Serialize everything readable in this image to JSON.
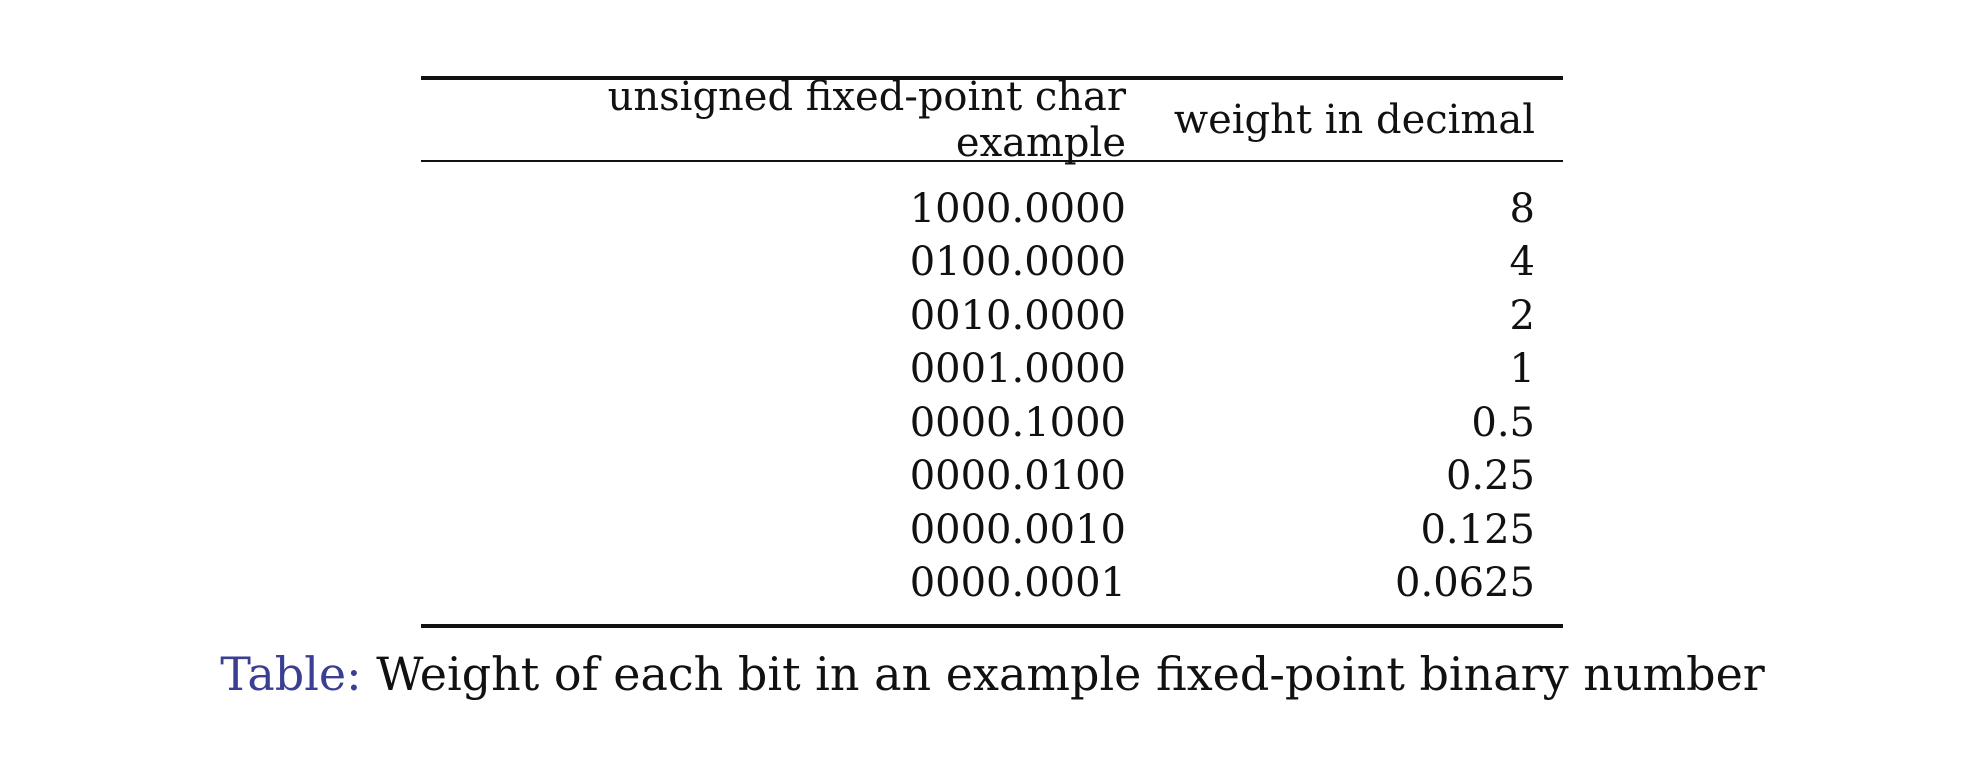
{
  "table": {
    "headers": [
      "unsigned fixed-point char example",
      "weight in decimal"
    ],
    "rows": [
      [
        "1000.0000",
        "8"
      ],
      [
        "0100.0000",
        "4"
      ],
      [
        "0010.0000",
        "2"
      ],
      [
        "0001.0000",
        "1"
      ],
      [
        "0000.1000",
        "0.5"
      ],
      [
        "0000.0100",
        "0.25"
      ],
      [
        "0000.0010",
        "0.125"
      ],
      [
        "0000.0001",
        "0.0625"
      ]
    ]
  },
  "caption": {
    "label": "Table:",
    "text": "Weight of each bit in an example fixed-point binary number"
  },
  "colors": {
    "caption_label": "#3a3f94",
    "text": "#111111"
  }
}
